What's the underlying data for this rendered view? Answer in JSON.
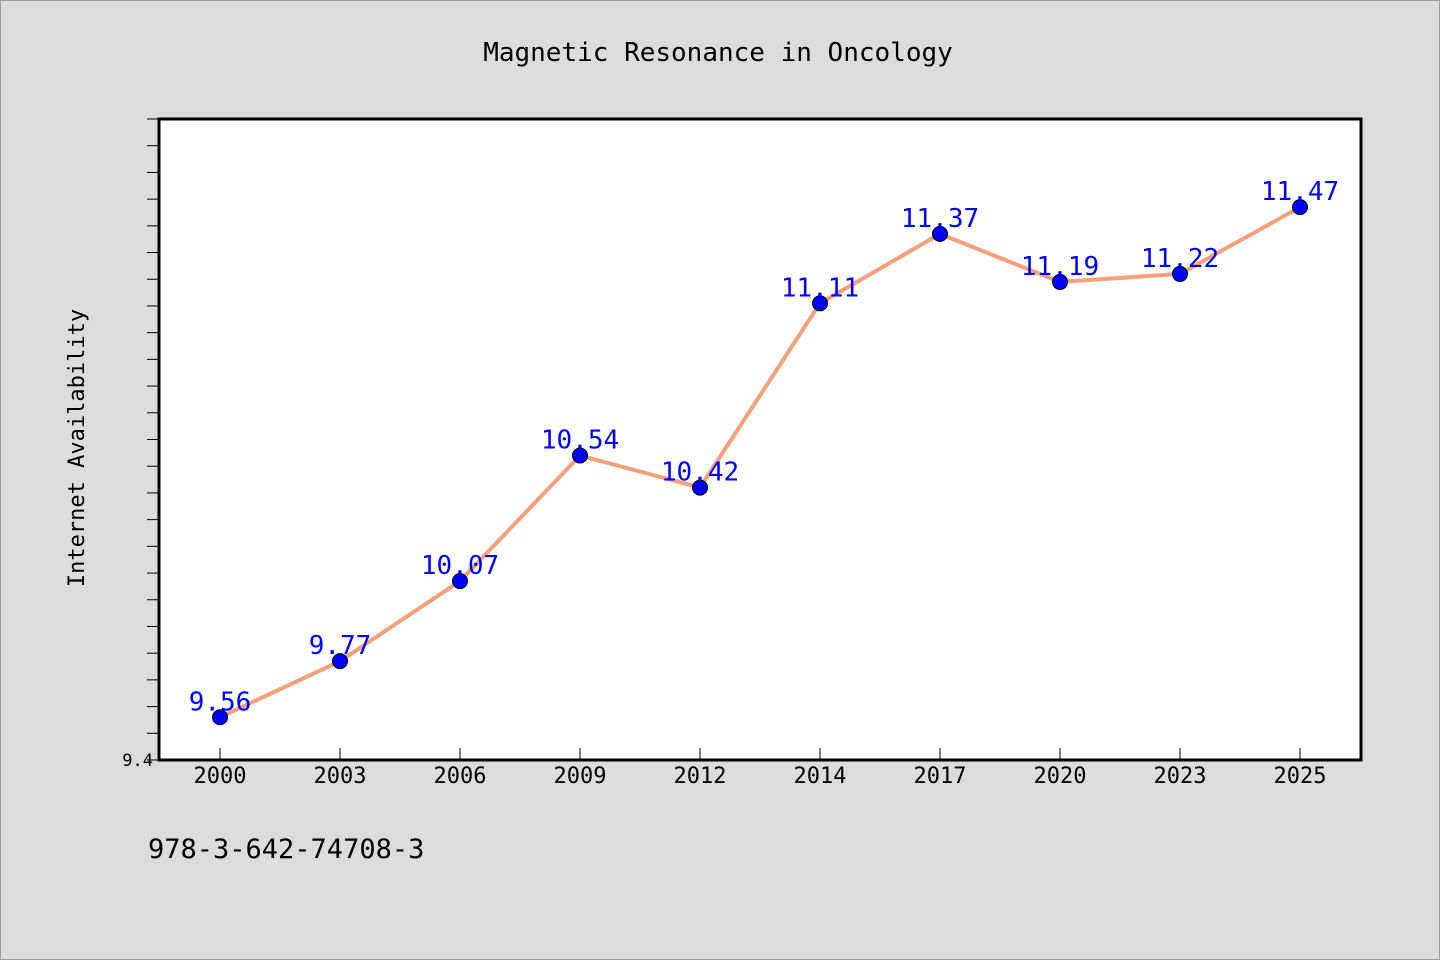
{
  "chart_data": {
    "type": "line",
    "title": "Magnetic Resonance in Oncology",
    "xlabel": "",
    "ylabel": "Internet Availability",
    "categories": [
      "2000",
      "2003",
      "2006",
      "2009",
      "2012",
      "2014",
      "2017",
      "2020",
      "2023",
      "2025"
    ],
    "series": [
      {
        "values": [
          9.56,
          9.77,
          10.07,
          10.54,
          10.42,
          11.11,
          11.37,
          11.19,
          11.22,
          11.47
        ],
        "data_labels": [
          "9.56",
          "9.77",
          "10.07",
          "10.54",
          "10.42",
          "11.11",
          "11.37",
          "11.19",
          "11.22",
          "11.47"
        ]
      }
    ],
    "ylim": [
      9.4,
      11.8
    ],
    "y_tick_labels": [
      {
        "value": 9.4,
        "label": "9.4"
      }
    ],
    "y_minor_tick_step": 0.1,
    "line_color": "#f4a07c",
    "marker_color": "#0000ff",
    "label_color": "#0000ff",
    "grid": false,
    "legend": "none"
  },
  "footer": {
    "isbn": "978-3-642-74708-3"
  },
  "colors": {
    "background": "#dcdcdc",
    "plot_background": "#ffffff"
  }
}
